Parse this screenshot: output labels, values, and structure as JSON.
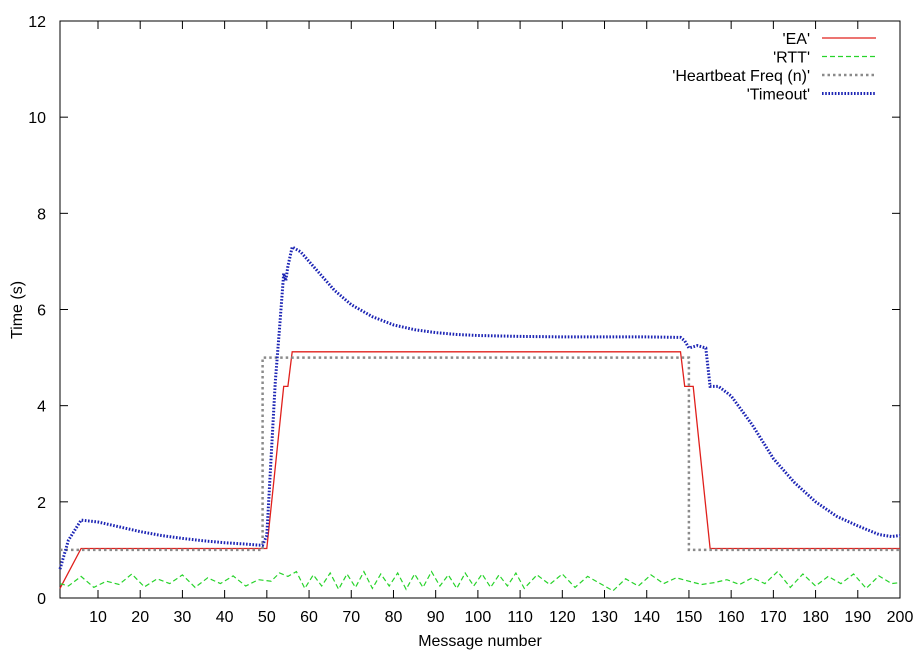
{
  "chart_data": {
    "type": "line",
    "xlabel": "Message number",
    "ylabel": "Time (s)",
    "xlim": [
      1,
      200
    ],
    "ylim": [
      0,
      12
    ],
    "xticks": [
      10,
      20,
      30,
      40,
      50,
      60,
      70,
      80,
      90,
      100,
      110,
      120,
      130,
      140,
      150,
      160,
      170,
      180,
      190,
      200
    ],
    "yticks": [
      0,
      2,
      4,
      6,
      8,
      10,
      12
    ],
    "grid": false,
    "legend_position": "top-right",
    "series": [
      {
        "name": "'EA'",
        "color": "#e0201c",
        "style": "solid",
        "x": [
          1,
          6,
          49,
          50,
          54,
          55,
          56,
          148,
          149,
          150,
          151,
          155,
          200
        ],
        "y": [
          0.2,
          1.03,
          1.03,
          1.03,
          4.4,
          4.4,
          5.12,
          5.12,
          4.4,
          4.4,
          4.4,
          1.03,
          1.03
        ]
      },
      {
        "name": "'RTT'",
        "color": "#27d32a",
        "style": "dashed",
        "x": [
          1,
          3,
          6,
          9,
          12,
          15,
          18,
          21,
          24,
          27,
          30,
          33,
          36,
          39,
          42,
          45,
          48,
          51,
          53,
          55,
          57,
          59,
          61,
          63,
          65,
          67,
          69,
          71,
          73,
          75,
          77,
          79,
          81,
          83,
          85,
          87,
          89,
          91,
          93,
          95,
          97,
          99,
          101,
          103,
          105,
          107,
          109,
          111,
          114,
          117,
          120,
          123,
          126,
          129,
          132,
          135,
          138,
          141,
          144,
          147,
          150,
          153,
          156,
          159,
          162,
          165,
          168,
          171,
          174,
          177,
          180,
          183,
          186,
          189,
          192,
          195,
          198,
          200
        ],
        "y": [
          0.3,
          0.25,
          0.45,
          0.22,
          0.35,
          0.28,
          0.5,
          0.23,
          0.4,
          0.3,
          0.48,
          0.22,
          0.42,
          0.3,
          0.46,
          0.25,
          0.38,
          0.35,
          0.52,
          0.45,
          0.55,
          0.2,
          0.48,
          0.25,
          0.52,
          0.18,
          0.5,
          0.22,
          0.55,
          0.2,
          0.5,
          0.25,
          0.52,
          0.18,
          0.5,
          0.22,
          0.55,
          0.25,
          0.48,
          0.2,
          0.52,
          0.25,
          0.5,
          0.22,
          0.48,
          0.25,
          0.52,
          0.2,
          0.48,
          0.28,
          0.5,
          0.22,
          0.45,
          0.3,
          0.15,
          0.4,
          0.25,
          0.48,
          0.3,
          0.42,
          0.35,
          0.28,
          0.32,
          0.38,
          0.28,
          0.42,
          0.3,
          0.55,
          0.22,
          0.5,
          0.25,
          0.45,
          0.3,
          0.5,
          0.2,
          0.46,
          0.3,
          0.32
        ]
      },
      {
        "name": "'Heartbeat Freq (n)'",
        "color": "#8a8a8a",
        "style": "dotted",
        "x": [
          1,
          2,
          49,
          49,
          150,
          150,
          200
        ],
        "y": [
          1.0,
          1.0,
          1.0,
          5.0,
          5.0,
          1.0,
          1.0
        ]
      },
      {
        "name": "'Timeout'",
        "color": "#1c24b4",
        "style": "dotted-thick",
        "x": [
          1,
          3,
          6,
          10,
          15,
          20,
          25,
          30,
          35,
          40,
          45,
          48,
          49,
          50,
          52,
          53,
          54,
          54.5,
          55,
          56,
          58,
          60,
          63,
          66,
          70,
          75,
          80,
          85,
          90,
          95,
          100,
          110,
          120,
          130,
          140,
          148,
          149,
          150,
          152,
          154,
          155,
          157,
          160,
          165,
          170,
          175,
          180,
          185,
          190,
          195,
          198,
          200
        ],
        "y": [
          0.6,
          1.2,
          1.62,
          1.58,
          1.48,
          1.38,
          1.3,
          1.24,
          1.19,
          1.15,
          1.12,
          1.1,
          1.1,
          1.3,
          4.5,
          5.6,
          6.75,
          6.6,
          6.9,
          7.3,
          7.2,
          7.0,
          6.7,
          6.4,
          6.1,
          5.85,
          5.68,
          5.58,
          5.52,
          5.48,
          5.46,
          5.44,
          5.43,
          5.43,
          5.43,
          5.42,
          5.35,
          5.2,
          5.25,
          5.2,
          4.4,
          4.4,
          4.2,
          3.6,
          2.9,
          2.4,
          2.0,
          1.7,
          1.5,
          1.32,
          1.28,
          1.3
        ]
      }
    ]
  }
}
